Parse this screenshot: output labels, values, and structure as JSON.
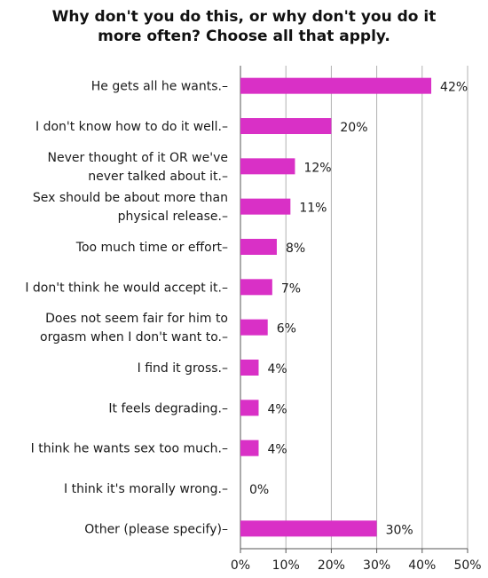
{
  "chart_data": {
    "type": "bar",
    "orientation": "horizontal",
    "title": "Why don't you do this, or why don't you do it more often? Choose all that apply.",
    "title_lines": [
      "Why don't you do this, or why don't you do it",
      "more often? Choose all that apply."
    ],
    "categories": [
      "He gets all he wants.",
      "I don't know how to do it well.",
      "Never thought of it OR we've never talked about it.",
      "Sex should be about more than physical release.",
      "Too much time or effort",
      "I don't think he would accept it.",
      "Does not seem fair for him to orgasm when I don't want to.",
      "I find it gross.",
      "It feels degrading.",
      "I think he wants sex too much.",
      "I think it's morally wrong.",
      "Other (please specify)"
    ],
    "category_lines": [
      [
        "He gets all he wants.–"
      ],
      [
        "I don't know how to do it well.–"
      ],
      [
        "Never thought of it OR we've",
        "never talked about it.–"
      ],
      [
        "Sex should be about more than",
        "physical release.–"
      ],
      [
        "Too much time or effort–"
      ],
      [
        "I don't think he would accept it.–"
      ],
      [
        "Does not seem fair for him to",
        "orgasm when I don't want to.–"
      ],
      [
        "I find it gross.–"
      ],
      [
        "It feels degrading.–"
      ],
      [
        "I think he wants sex too much.–"
      ],
      [
        "I think it's morally wrong.–"
      ],
      [
        "Other (please specify)–"
      ]
    ],
    "values": [
      42,
      20,
      12,
      11,
      8,
      7,
      6,
      4,
      4,
      4,
      0,
      30
    ],
    "value_labels": [
      "42%",
      "20%",
      "12%",
      "11%",
      "8%",
      "7%",
      "6%",
      "4%",
      "4%",
      "4%",
      "0%",
      "30%"
    ],
    "xlim": [
      0,
      50
    ],
    "x_ticks": [
      0,
      10,
      20,
      30,
      40,
      50
    ],
    "x_tick_labels": [
      "0%",
      "10%",
      "20%",
      "30%",
      "40%",
      "50%"
    ],
    "grid": true,
    "legend": "none",
    "bar_color": "#d930c6",
    "grid_color": "#b0b0b0",
    "axis_color": "#555555"
  }
}
